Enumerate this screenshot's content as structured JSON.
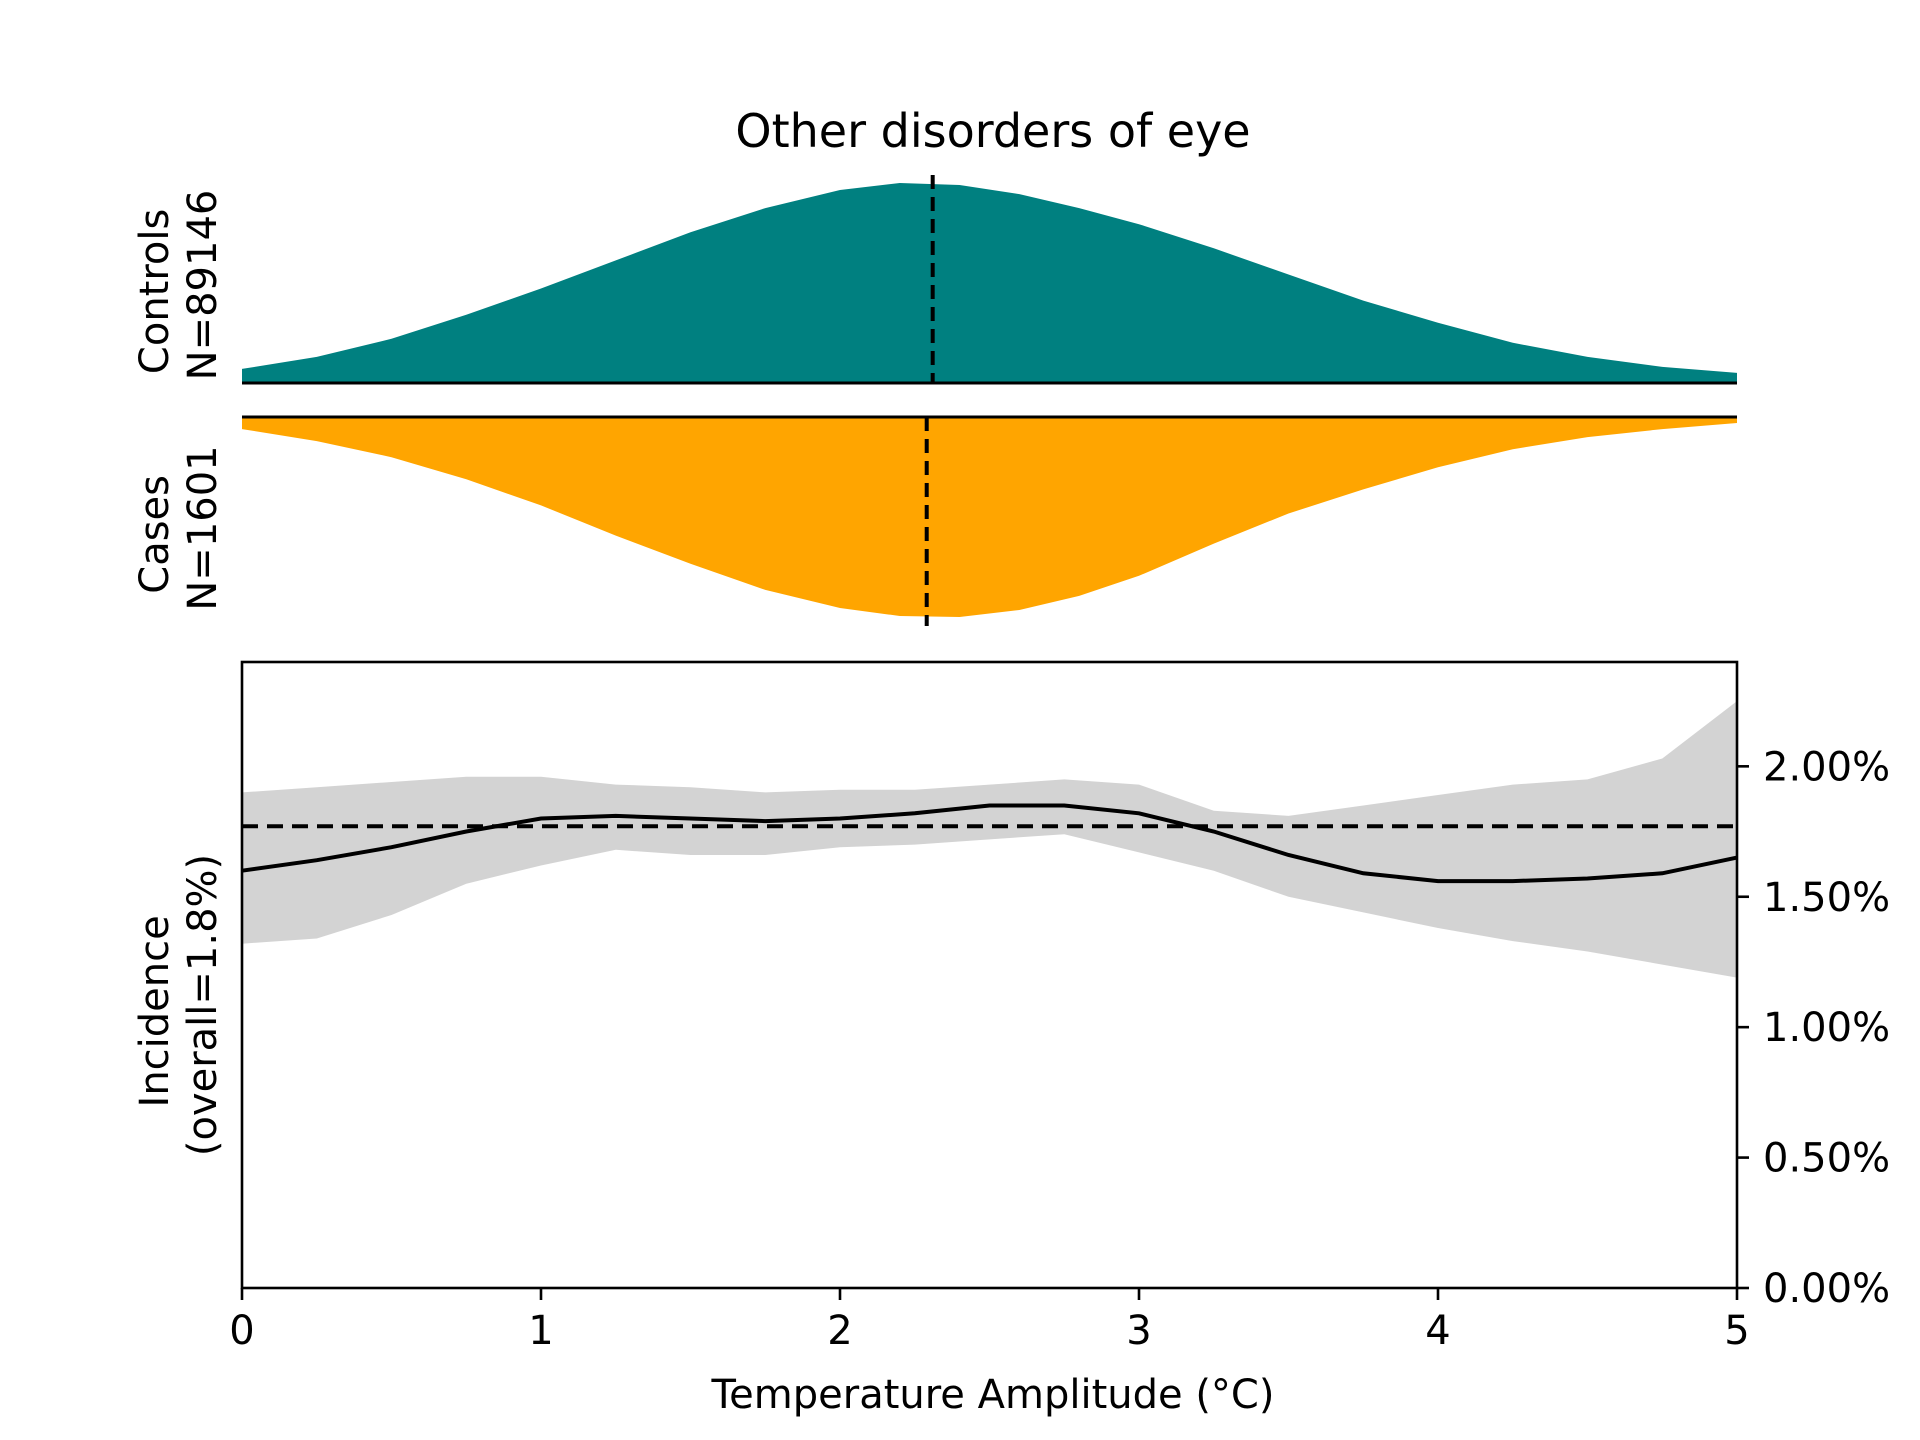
{
  "chart_data": {
    "type": "area",
    "title": "Other disorders of eye",
    "xlabel": "Temperature Amplitude (°C)",
    "xlim": [
      0,
      5
    ],
    "x_ticks": [
      "0",
      "1",
      "2",
      "3",
      "4",
      "5"
    ],
    "colors": {
      "controls": "#008080",
      "cases": "#ffa500",
      "ci_band": "#d3d3d3",
      "line": "#000000"
    },
    "distributions": {
      "controls": {
        "label_line1": "Controls",
        "label_line2": "N=89146",
        "median": 2.31,
        "x": [
          0,
          0.25,
          0.5,
          0.75,
          1.0,
          1.25,
          1.5,
          1.75,
          2.0,
          2.2,
          2.4,
          2.6,
          2.8,
          3.0,
          3.25,
          3.5,
          3.75,
          4.0,
          4.25,
          4.5,
          4.75,
          5.0
        ],
        "density": [
          0.07,
          0.13,
          0.22,
          0.34,
          0.47,
          0.61,
          0.75,
          0.87,
          0.96,
          0.995,
          0.985,
          0.94,
          0.87,
          0.79,
          0.67,
          0.54,
          0.41,
          0.3,
          0.2,
          0.13,
          0.08,
          0.05
        ]
      },
      "cases": {
        "label_line1": "Cases",
        "label_line2": "N=1601",
        "median": 2.29,
        "x": [
          0,
          0.25,
          0.5,
          0.75,
          1.0,
          1.25,
          1.5,
          1.75,
          2.0,
          2.2,
          2.4,
          2.6,
          2.8,
          3.0,
          3.25,
          3.5,
          3.75,
          4.0,
          4.25,
          4.5,
          4.75,
          5.0
        ],
        "density": [
          0.06,
          0.12,
          0.2,
          0.31,
          0.44,
          0.59,
          0.73,
          0.86,
          0.95,
          0.99,
          0.995,
          0.96,
          0.89,
          0.79,
          0.63,
          0.48,
          0.36,
          0.25,
          0.16,
          0.1,
          0.06,
          0.03
        ]
      }
    },
    "incidence": {
      "ylabel_line1": "Incidence",
      "ylabel_line2": "(overall=1.8%)",
      "ylim": [
        0,
        0.024
      ],
      "y_ticks": [
        0,
        0.005,
        0.01,
        0.015,
        0.02
      ],
      "y_tick_labels": [
        "0.00%",
        "0.50%",
        "1.00%",
        "1.50%",
        "2.00%"
      ],
      "overall": 0.0177,
      "x": [
        0,
        0.25,
        0.5,
        0.75,
        1.0,
        1.25,
        1.5,
        1.75,
        2.0,
        2.25,
        2.5,
        2.75,
        3.0,
        3.25,
        3.5,
        3.75,
        4.0,
        4.25,
        4.5,
        4.75,
        5.0
      ],
      "y": [
        0.016,
        0.0164,
        0.0169,
        0.0175,
        0.018,
        0.0181,
        0.018,
        0.0179,
        0.018,
        0.0182,
        0.0185,
        0.0185,
        0.0182,
        0.0175,
        0.0166,
        0.0159,
        0.0156,
        0.0156,
        0.0157,
        0.0159,
        0.0165
      ],
      "ci_lower": [
        0.0132,
        0.0134,
        0.0143,
        0.0155,
        0.0162,
        0.0168,
        0.0166,
        0.0166,
        0.0169,
        0.017,
        0.0172,
        0.0174,
        0.0167,
        0.016,
        0.015,
        0.0144,
        0.0138,
        0.0133,
        0.0129,
        0.0124,
        0.0119
      ],
      "ci_upper": [
        0.019,
        0.0192,
        0.0194,
        0.0196,
        0.0196,
        0.0193,
        0.0192,
        0.019,
        0.0191,
        0.0191,
        0.0193,
        0.0195,
        0.0193,
        0.0183,
        0.0181,
        0.0185,
        0.0189,
        0.0193,
        0.0195,
        0.0203,
        0.0225
      ]
    }
  }
}
